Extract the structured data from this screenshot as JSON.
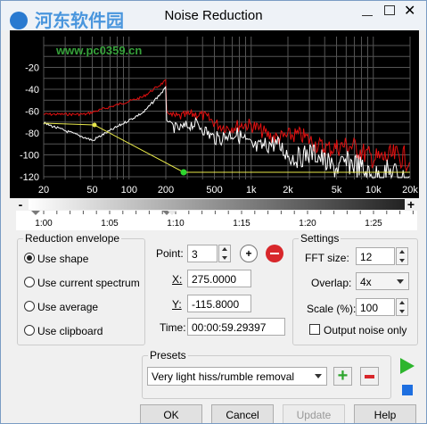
{
  "window": {
    "title": "Noise Reduction",
    "watermark": [
      "河东软件园",
      "www.pc0359.cn"
    ]
  },
  "spectrum": {
    "y_labels": [
      "-20",
      "-40",
      "-60",
      "-80",
      "-100",
      "-120"
    ],
    "x_labels": [
      "20",
      "50",
      "100",
      "200",
      "500",
      "1k",
      "2k",
      "5k",
      "10k",
      "20k"
    ]
  },
  "timeline": {
    "zoom_out": "-",
    "zoom_in": "+",
    "labels": [
      "1:00",
      "1:05",
      "1:10",
      "1:15",
      "1:20",
      "1:25"
    ]
  },
  "reduction_envelope": {
    "title": "Reduction envelope",
    "options": [
      "Use shape",
      "Use current spectrum",
      "Use average",
      "Use clipboard"
    ],
    "selected": 0
  },
  "point": {
    "label": "Point:",
    "value": "3",
    "x_label": "X:",
    "x_value": "275.0000",
    "y_label": "Y:",
    "y_value": "-115.8000",
    "time_label": "Time:",
    "time_value": "00:00:59.29397"
  },
  "settings": {
    "title": "Settings",
    "fft_label": "FFT size:",
    "fft_value": "12",
    "overlap_label": "Overlap:",
    "overlap_value": "4x",
    "scale_label": "Scale (%):",
    "scale_value": "100",
    "output_noise_only": "Output noise only"
  },
  "presets": {
    "title": "Presets",
    "value": "Very light hiss/rumble removal"
  },
  "buttons": [
    "OK",
    "Cancel",
    "Update",
    "Help"
  ]
}
